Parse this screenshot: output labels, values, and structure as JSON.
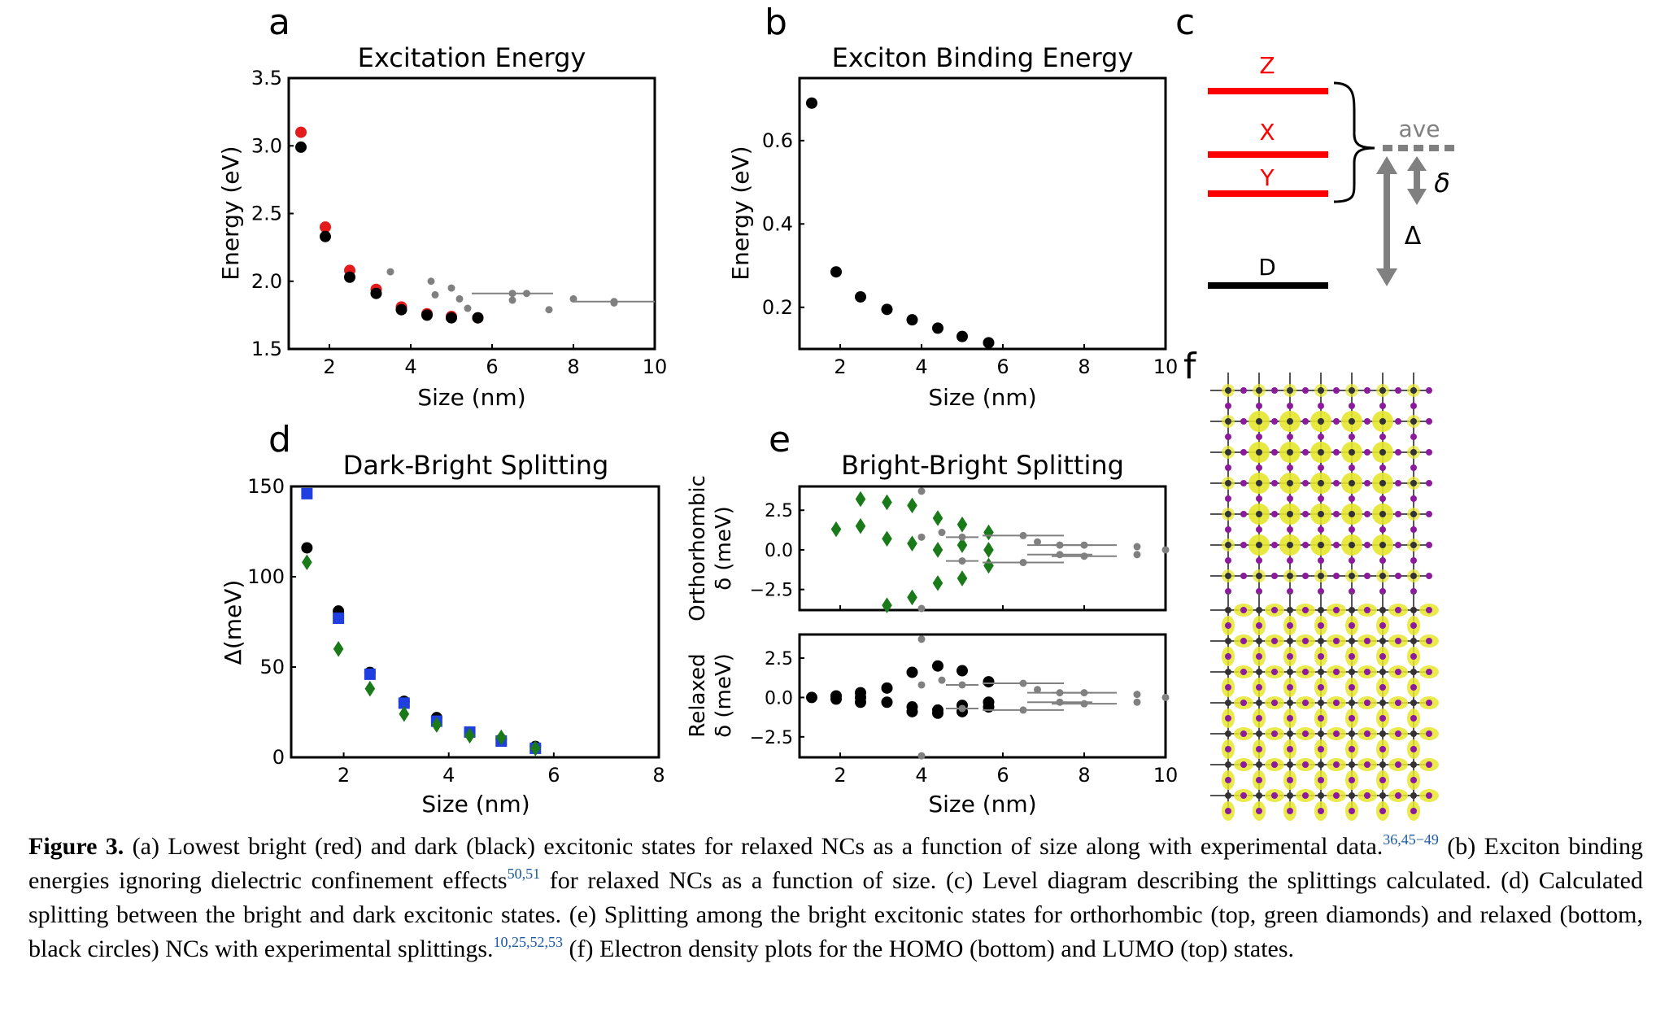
{
  "panels": {
    "a": {
      "letter": "a",
      "title": "Excitation Energy",
      "xlabel": "Size (nm)",
      "ylabel": "Energy (eV)",
      "xticks": [
        "2",
        "4",
        "6",
        "8",
        "10"
      ],
      "yticks": [
        "1.5",
        "2.0",
        "2.5",
        "3.0",
        "3.5"
      ]
    },
    "b": {
      "letter": "b",
      "title": "Exciton Binding Energy",
      "xlabel": "Size (nm)",
      "ylabel": "Energy (eV)",
      "xticks": [
        "2",
        "4",
        "6",
        "8",
        "10"
      ],
      "yticks": [
        "0.2",
        "0.4",
        "0.6"
      ]
    },
    "c": {
      "letter": "c",
      "levels": [
        "Z",
        "X",
        "Y",
        "D"
      ],
      "ave_label": "ave",
      "delta_small": "δ",
      "delta_big": "Δ"
    },
    "d": {
      "letter": "d",
      "title": "Dark-Bright Splitting",
      "xlabel": "Size (nm)",
      "ylabel": "Δ(meV)",
      "xticks": [
        "2",
        "4",
        "6",
        "8"
      ],
      "yticks": [
        "0",
        "50",
        "100",
        "150"
      ]
    },
    "e": {
      "letter": "e",
      "title": "Bright-Bright Splitting",
      "xlabel": "Size (nm)",
      "top_ylabel_1": "Orthorhombic",
      "top_ylabel_2": "δ (meV)",
      "bottom_ylabel_1": "Relaxed",
      "bottom_ylabel_2": "δ (meV)",
      "xticks": [
        "2",
        "4",
        "6",
        "8",
        "10"
      ],
      "yticks": [
        "−2.5",
        "0.0",
        "2.5"
      ]
    },
    "f": {
      "letter": "f"
    }
  },
  "caption": {
    "label": "Figure 3.",
    "s1": " (a) Lowest bright (red) and dark (black) excitonic states for relaxed NCs as a function of size along with experimental data.",
    "r1": "36,45−49",
    "s2": " (b) Exciton binding energies ignoring dielectric confinement effects",
    "r2": "50,51",
    "s3": " for relaxed NCs as a function of size. (c) Level diagram describing the splittings calculated. (d) Calculated splitting between the bright and dark excitonic states. (e) Splitting among the bright excitonic states for orthorhombic (top, green diamonds) and relaxed (bottom, black circles) NCs with experimental splittings.",
    "r3": "10,25,52,53",
    "s4": " (f) Electron density plots for the HOMO (bottom) and LUMO (top) states."
  },
  "colors": {
    "bright": "#e41a1c",
    "dark": "#000000",
    "experiment": "#808080",
    "blue": "#1f3fe0",
    "green": "#1a7a1a",
    "level_red": "#ff0000",
    "density_yellow": "#e6e62e",
    "iodine_purple": "#8c1a9c"
  },
  "chart_data": [
    {
      "panel": "a",
      "type": "scatter",
      "title": "Excitation Energy",
      "xlabel": "Size (nm)",
      "ylabel": "Energy (eV)",
      "xlim": [
        1.0,
        10.0
      ],
      "ylim": [
        1.5,
        3.5
      ],
      "series": [
        {
          "color": "#e41a1c",
          "x": [
            1.3,
            1.9,
            2.5,
            3.15,
            3.77,
            4.4,
            5.0,
            5.65
          ],
          "y": [
            3.1,
            2.4,
            2.08,
            1.94,
            1.81,
            1.76,
            1.74,
            1.73
          ]
        },
        {
          "color": "#000000",
          "x": [
            1.3,
            1.9,
            2.5,
            3.15,
            3.77,
            4.4,
            5.0,
            5.65
          ],
          "y": [
            2.99,
            2.33,
            2.03,
            1.91,
            1.79,
            1.75,
            1.73,
            1.73
          ]
        },
        {
          "color": "#808080",
          "x": [
            3.5,
            4.5,
            4.6,
            5.0,
            5.2,
            5.4,
            6.5,
            6.5,
            6.85,
            7.4,
            8.0,
            9.0,
            9.0
          ],
          "y": [
            2.07,
            2.0,
            1.9,
            1.95,
            1.87,
            1.8,
            1.91,
            1.86,
            1.91,
            1.79,
            1.87,
            1.85,
            1.84
          ],
          "error_x": [
            0,
            0,
            0,
            0,
            0,
            0,
            1.0,
            0,
            0,
            0,
            0,
            1.0,
            0
          ]
        }
      ]
    },
    {
      "panel": "b",
      "type": "scatter",
      "title": "Exciton Binding Energy",
      "xlabel": "Size (nm)",
      "ylabel": "Energy (eV)",
      "xlim": [
        1.0,
        10.0
      ],
      "ylim": [
        0.1,
        0.75
      ],
      "series": [
        {
          "color": "#000000",
          "x": [
            1.3,
            1.9,
            2.5,
            3.15,
            3.77,
            4.4,
            5.0,
            5.65
          ],
          "y": [
            0.69,
            0.285,
            0.225,
            0.195,
            0.17,
            0.15,
            0.13,
            0.115
          ]
        }
      ]
    },
    {
      "panel": "d",
      "type": "scatter",
      "title": "Dark-Bright Splitting",
      "xlabel": "Size (nm)",
      "ylabel": "Δ(meV)",
      "xlim": [
        1.0,
        8.0
      ],
      "ylim": [
        0,
        150
      ],
      "series": [
        {
          "color": "#000000",
          "marker": "circle",
          "x": [
            1.3,
            1.9,
            2.5,
            3.15,
            3.77,
            4.4,
            5.0,
            5.65
          ],
          "y": [
            116,
            81,
            47,
            31,
            22,
            14,
            10,
            6
          ]
        },
        {
          "color": "#1f3fe0",
          "marker": "square",
          "x": [
            1.3,
            1.9,
            2.5,
            3.15,
            3.77,
            4.4,
            5.0,
            5.65
          ],
          "y": [
            146,
            77,
            46,
            30,
            20,
            14,
            9,
            5
          ]
        },
        {
          "color": "#1a7a1a",
          "marker": "diamond",
          "x": [
            1.3,
            1.9,
            2.5,
            3.15,
            3.77,
            4.4,
            5.0,
            5.65
          ],
          "y": [
            108,
            60,
            38,
            24,
            18,
            12,
            11,
            5
          ]
        }
      ]
    },
    {
      "panel": "e-top",
      "type": "scatter",
      "title": "Bright-Bright Splitting",
      "ylabel": "Orthorhombic δ (meV)",
      "xlim": [
        1.0,
        10.0
      ],
      "ylim": [
        -3.8,
        4.0
      ],
      "series": [
        {
          "color": "#1a7a1a",
          "marker": "diamond",
          "x": [
            1.9,
            2.5,
            2.5,
            3.15,
            3.15,
            3.15,
            3.77,
            3.77,
            3.77,
            4.4,
            4.4,
            4.4,
            5.0,
            5.0,
            5.0,
            5.65,
            5.65,
            5.65
          ],
          "y": [
            1.3,
            3.2,
            1.5,
            3.0,
            0.7,
            -3.5,
            2.8,
            0.4,
            -3.0,
            2.0,
            0.0,
            -2.1,
            1.6,
            0.3,
            -1.8,
            1.1,
            0.0,
            -1.0
          ]
        },
        {
          "color": "#808080",
          "marker": "circle",
          "x": [
            4.0,
            4.0,
            4.0,
            4.5,
            5.0,
            5.0,
            6.5,
            6.5,
            6.85,
            7.4,
            7.4,
            8.0,
            8.0,
            9.3,
            9.3,
            10.0
          ],
          "y": [
            3.7,
            0.8,
            -3.7,
            1.1,
            0.8,
            -0.7,
            0.9,
            -0.8,
            0.5,
            0.3,
            -0.3,
            0.3,
            -0.4,
            0.2,
            -0.3,
            0.0
          ],
          "error_x": [
            0,
            0,
            0,
            0,
            0.4,
            0.4,
            1.0,
            1.0,
            0,
            0.8,
            0.8,
            0.8,
            0.8,
            0,
            0,
            0
          ]
        }
      ]
    },
    {
      "panel": "e-bottom",
      "type": "scatter",
      "xlabel": "Size (nm)",
      "ylabel": "Relaxed δ (meV)",
      "xlim": [
        1.0,
        10.0
      ],
      "ylim": [
        -3.8,
        4.0
      ],
      "series": [
        {
          "color": "#000000",
          "marker": "circle",
          "x": [
            1.3,
            1.9,
            1.9,
            2.5,
            2.5,
            2.5,
            3.15,
            3.15,
            3.77,
            3.77,
            3.77,
            4.4,
            4.4,
            4.4,
            5.0,
            5.0,
            5.0,
            5.65,
            5.65,
            5.65
          ],
          "y": [
            0.0,
            0.1,
            -0.1,
            0.3,
            0.0,
            -0.3,
            0.6,
            -0.3,
            1.6,
            -0.6,
            -0.9,
            2.0,
            -0.8,
            -1.0,
            1.7,
            -0.5,
            -0.9,
            1.0,
            -0.3,
            -0.6
          ]
        },
        {
          "color": "#808080",
          "marker": "circle",
          "x": [
            4.0,
            4.0,
            4.0,
            4.5,
            5.0,
            5.0,
            6.5,
            6.5,
            6.85,
            7.4,
            7.4,
            8.0,
            8.0,
            9.3,
            9.3,
            10.0
          ],
          "y": [
            3.7,
            0.8,
            -3.7,
            1.1,
            0.8,
            -0.7,
            0.9,
            -0.8,
            0.5,
            0.3,
            -0.3,
            0.3,
            -0.4,
            0.2,
            -0.3,
            0.0
          ],
          "error_x": [
            0,
            0,
            0,
            0,
            0.4,
            0.4,
            1.0,
            1.0,
            0,
            0.8,
            0.8,
            0.8,
            0.8,
            0,
            0,
            0
          ]
        }
      ]
    }
  ]
}
